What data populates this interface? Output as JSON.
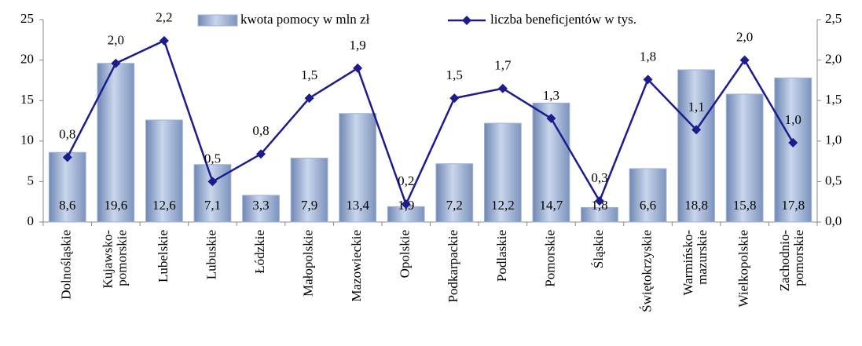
{
  "chart_data": {
    "type": "bar-line",
    "categories": [
      "Dolnośląskie",
      "Kujawsko-pomorskie",
      "Lubelskie",
      "Lubuskie",
      "Łódzkie",
      "Małopolskie",
      "Mazowieckie",
      "Opolskie",
      "Podkarpackie",
      "Podlaskie",
      "Pomorskie",
      "Śląskie",
      "Świętokrzyskie",
      "Warmińsko-mazurskie",
      "Wielkopolskie",
      "Zachodnio-pomorskie"
    ],
    "series": [
      {
        "name": "kwota pomocy w mln zł",
        "type": "bar",
        "color": "#9fb4d6",
        "values": [
          8.6,
          19.6,
          12.6,
          7.1,
          3.3,
          7.9,
          13.4,
          1.9,
          7.2,
          12.2,
          14.7,
          1.8,
          6.6,
          18.8,
          15.8,
          17.8
        ],
        "value_labels": [
          "8,6",
          "19,6",
          "12,6",
          "7,1",
          "3,3",
          "7,9",
          "13,4",
          "1,9",
          "7,2",
          "12,2",
          "14,7",
          "1,8",
          "6,6",
          "18,8",
          "15,8",
          "17,8"
        ]
      },
      {
        "name": "liczba beneficjentów w tys.",
        "type": "line",
        "axis": "y2",
        "color": "#1c1c8c",
        "values": [
          0.8,
          1.96,
          2.24,
          0.5,
          0.84,
          1.53,
          1.9,
          0.22,
          1.53,
          1.65,
          1.28,
          0.26,
          1.76,
          1.14,
          2.0,
          0.98
        ],
        "value_labels": [
          "0,8",
          "2,0",
          "2,2",
          "0,5",
          "0,8",
          "1,5",
          "1,9",
          "0,2",
          "1,5",
          "1,7",
          "1,3",
          "0,3",
          "1,8",
          "1,1",
          "2,0",
          "1,0"
        ]
      }
    ],
    "ylim": [
      0,
      25
    ],
    "yticks": [
      0,
      5,
      10,
      15,
      20,
      25
    ],
    "y2lim": [
      0,
      2.5
    ],
    "y2ticks": [
      {
        "value": 0,
        "label": "0,0"
      },
      {
        "value": 0.5,
        "label": "0,5"
      },
      {
        "value": 1,
        "label": "1,0"
      },
      {
        "value": 1.5,
        "label": "1,5"
      },
      {
        "value": 2,
        "label": "2,0"
      },
      {
        "value": 2.5,
        "label": "2,5"
      }
    ],
    "grid": false
  }
}
